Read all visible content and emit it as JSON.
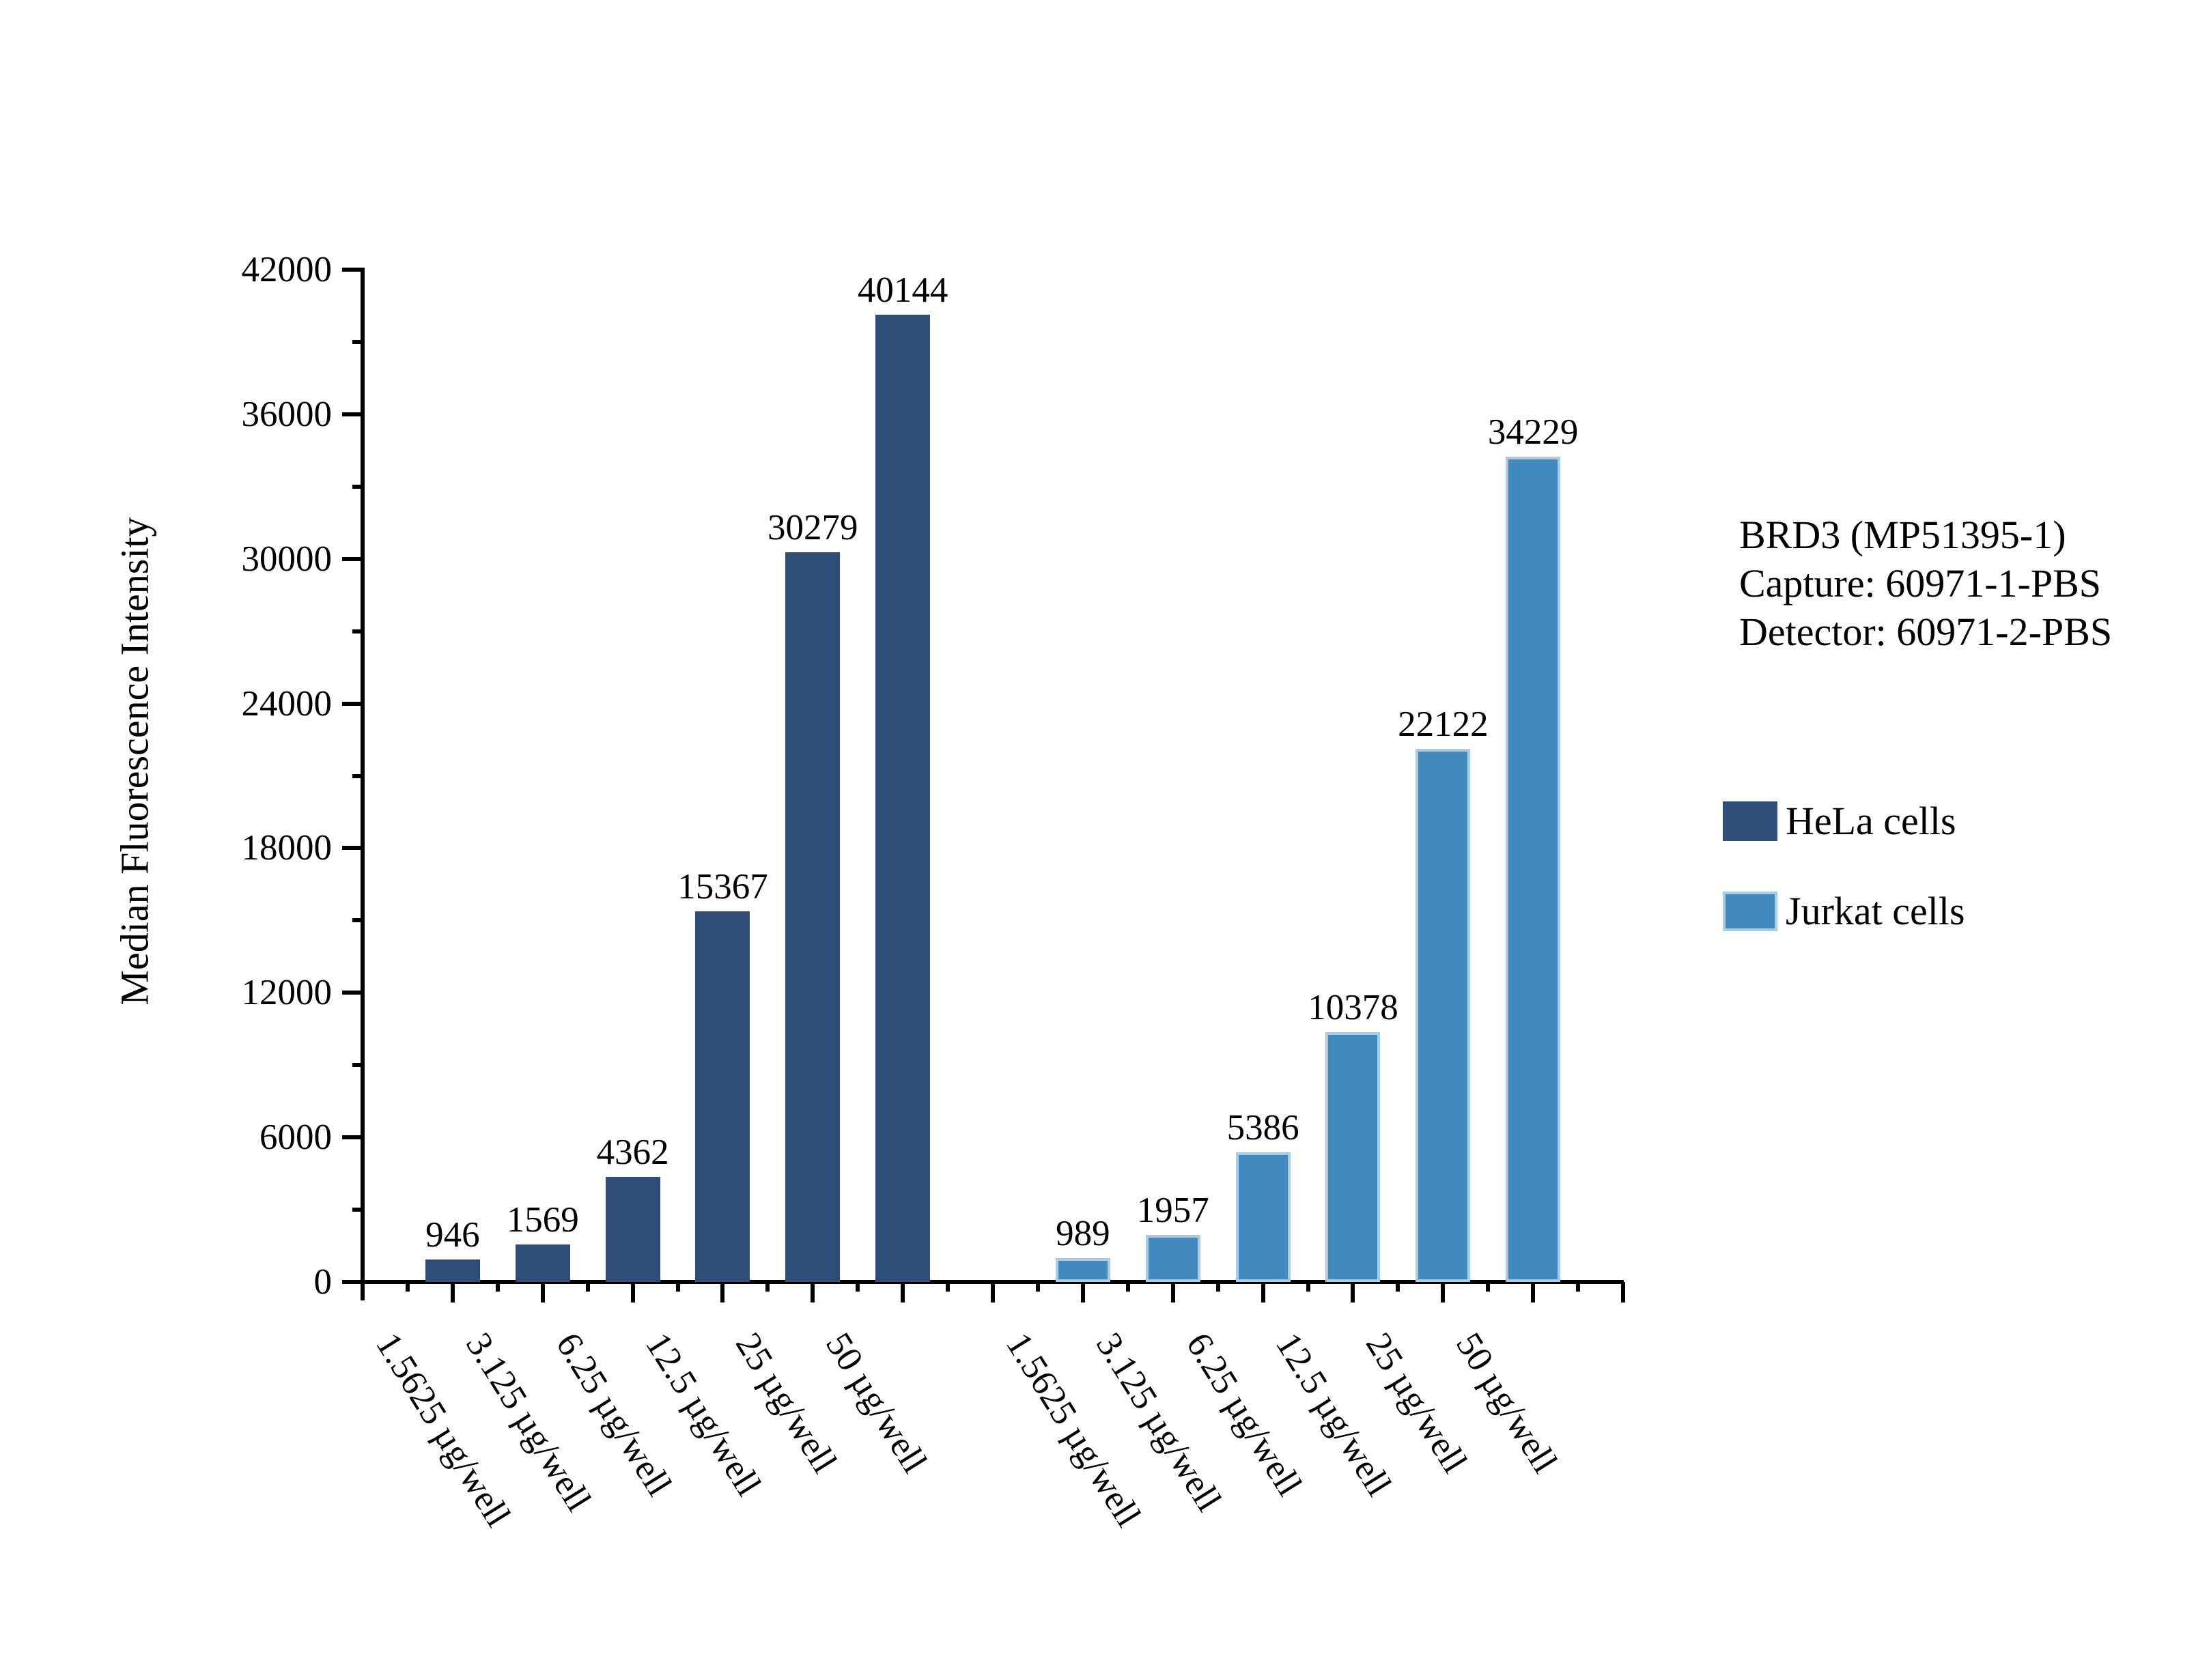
{
  "chart_data": {
    "type": "bar",
    "title": "",
    "ylabel": "Median Fluorescence Intensity",
    "xlabel": "",
    "ylim": [
      0,
      42000
    ],
    "ytick_major_step": 6000,
    "ytick_minor_step": 3000,
    "ytick_labels": [
      "0",
      "6000",
      "12000",
      "18000",
      "24000",
      "30000",
      "36000",
      "42000"
    ],
    "grid": false,
    "legend_position": "right",
    "categories": [
      "1.5625 µg/well",
      "3.125 µg/well",
      "6.25 µg/well",
      "12.5 µg/well",
      "25 µg/well",
      "50 µg/well"
    ],
    "series": [
      {
        "name": "HeLa cells",
        "color": "#2E4D78",
        "values": [
          946,
          1569,
          4362,
          15367,
          30279,
          40144
        ]
      },
      {
        "name": "Jurkat cells",
        "color": "#418ABD",
        "border_color": "#A9CBE5",
        "values": [
          989,
          1957,
          5386,
          10378,
          22122,
          34229
        ]
      }
    ],
    "annotation": [
      "BRD3 (MP51395-1)",
      "Capture: 60971-1-PBS",
      "Detector: 60971-2-PBS"
    ]
  },
  "colors": {
    "axis": "#000000",
    "background": "#FFFFFF",
    "text": "#000000"
  }
}
